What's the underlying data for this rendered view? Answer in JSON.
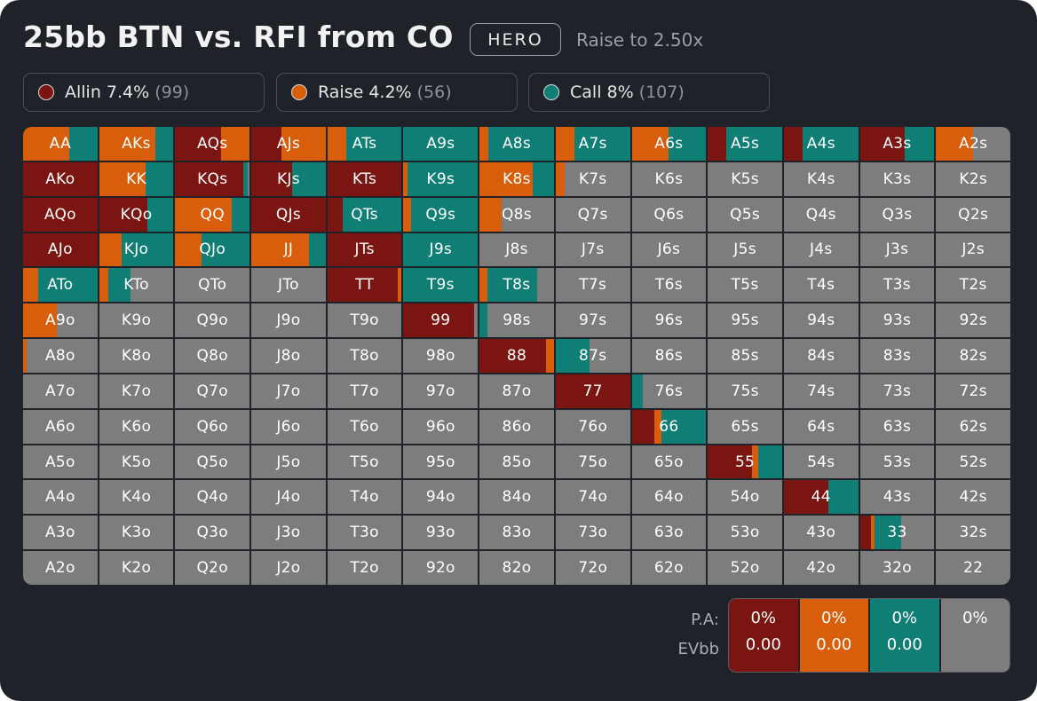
{
  "header": {
    "title": "25bb BTN vs. RFI from CO",
    "badge": "HERO",
    "subtitle": "Raise to 2.50x"
  },
  "legend": [
    {
      "label": "Allin 7.4%",
      "count": "(99)",
      "color": "#7b1512",
      "key": "allin"
    },
    {
      "label": "Raise 4.2%",
      "count": "(56)",
      "color": "#d95e0b",
      "key": "raise"
    },
    {
      "label": "Call 8%",
      "count": "(107)",
      "color": "#0f7e74",
      "key": "call"
    }
  ],
  "colors": {
    "allin": "#7b1512",
    "raise": "#d95e0b",
    "call": "#0f7e74",
    "fold": "#7d7d7d",
    "background": "#1f2228"
  },
  "grid": {
    "ranks": [
      "A",
      "K",
      "Q",
      "J",
      "T",
      "9",
      "8",
      "7",
      "6",
      "5",
      "4",
      "3",
      "2"
    ],
    "rows": [
      [
        "AA",
        "AKs",
        "AQs",
        "AJs",
        "ATs",
        "A9s",
        "A8s",
        "A7s",
        "A6s",
        "A5s",
        "A4s",
        "A3s",
        "A2s"
      ],
      [
        "AKo",
        "KK",
        "KQs",
        "KJs",
        "KTs",
        "K9s",
        "K8s",
        "K7s",
        "K6s",
        "K5s",
        "K4s",
        "K3s",
        "K2s"
      ],
      [
        "AQo",
        "KQo",
        "QQ",
        "QJs",
        "QTs",
        "Q9s",
        "Q8s",
        "Q7s",
        "Q6s",
        "Q5s",
        "Q4s",
        "Q3s",
        "Q2s"
      ],
      [
        "AJo",
        "KJo",
        "QJo",
        "JJ",
        "JTs",
        "J9s",
        "J8s",
        "J7s",
        "J6s",
        "J5s",
        "J4s",
        "J3s",
        "J2s"
      ],
      [
        "ATo",
        "KTo",
        "QTo",
        "JTo",
        "TT",
        "T9s",
        "T8s",
        "T7s",
        "T6s",
        "T5s",
        "T4s",
        "T3s",
        "T2s"
      ],
      [
        "A9o",
        "K9o",
        "Q9o",
        "J9o",
        "T9o",
        "99",
        "98s",
        "97s",
        "96s",
        "95s",
        "94s",
        "93s",
        "92s"
      ],
      [
        "A8o",
        "K8o",
        "Q8o",
        "J8o",
        "T8o",
        "98o",
        "88",
        "87s",
        "86s",
        "85s",
        "84s",
        "83s",
        "82s"
      ],
      [
        "A7o",
        "K7o",
        "Q7o",
        "J7o",
        "T7o",
        "97o",
        "87o",
        "77",
        "76s",
        "75s",
        "74s",
        "73s",
        "72s"
      ],
      [
        "A6o",
        "K6o",
        "Q6o",
        "J6o",
        "T6o",
        "96o",
        "86o",
        "76o",
        "66",
        "65s",
        "64s",
        "63s",
        "62s"
      ],
      [
        "A5o",
        "K5o",
        "Q5o",
        "J5o",
        "T5o",
        "95o",
        "85o",
        "75o",
        "65o",
        "55",
        "54s",
        "53s",
        "52s"
      ],
      [
        "A4o",
        "K4o",
        "Q4o",
        "J4o",
        "T4o",
        "94o",
        "84o",
        "74o",
        "64o",
        "54o",
        "44",
        "43s",
        "42s"
      ],
      [
        "A3o",
        "K3o",
        "Q3o",
        "J3o",
        "T3o",
        "93o",
        "83o",
        "73o",
        "63o",
        "53o",
        "43o",
        "33",
        "32s"
      ],
      [
        "A2o",
        "K2o",
        "Q2o",
        "J2o",
        "T2o",
        "92o",
        "82o",
        "72o",
        "62o",
        "52o",
        "42o",
        "32o",
        "22"
      ]
    ],
    "frequencies": {
      "AA": [
        0,
        0.62,
        0.38
      ],
      "AKs": [
        0,
        0.76,
        0.24
      ],
      "AQs": [
        0.62,
        0.38,
        0
      ],
      "AJs": [
        0.4,
        0.6,
        0
      ],
      "ATs": [
        0,
        0.25,
        0.75
      ],
      "A9s": [
        0,
        0,
        1
      ],
      "A8s": [
        0,
        0.12,
        0.88
      ],
      "A7s": [
        0,
        0.25,
        0.75
      ],
      "A6s": [
        0,
        0.5,
        0.5
      ],
      "A5s": [
        0.25,
        0,
        0.75
      ],
      "A4s": [
        0.25,
        0,
        0.75
      ],
      "A3s": [
        0.6,
        0,
        0.4
      ],
      "A2s": [
        0,
        0.5,
        0
      ],
      "AKo": [
        1,
        0,
        0
      ],
      "KK": [
        0,
        0.62,
        0.38
      ],
      "KQs": [
        0.92,
        0,
        0.06
      ],
      "KJs": [
        0.55,
        0,
        0.45
      ],
      "KTs": [
        1,
        0,
        0
      ],
      "K9s": [
        0,
        0.05,
        0.95
      ],
      "K8s": [
        0,
        0.72,
        0.28
      ],
      "K7s": [
        0,
        0.12,
        0
      ],
      "AQo": [
        1,
        0,
        0
      ],
      "KQo": [
        0.65,
        0,
        0.35
      ],
      "QQ": [
        0,
        0.76,
        0.24
      ],
      "QJs": [
        1,
        0,
        0
      ],
      "QTs": [
        0.2,
        0,
        0.8
      ],
      "Q9s": [
        0,
        0.1,
        0.9
      ],
      "Q8s": [
        0,
        0.3,
        0
      ],
      "AJo": [
        1,
        0,
        0
      ],
      "KJo": [
        0,
        0.3,
        0.7
      ],
      "QJo": [
        0,
        0.35,
        0.65
      ],
      "JJ": [
        0,
        0.78,
        0.22
      ],
      "JTs": [
        1,
        0,
        0
      ],
      "J9s": [
        0,
        0,
        1
      ],
      "ATo": [
        0,
        0.2,
        0.8
      ],
      "KTo": [
        0,
        0.12,
        0.3
      ],
      "TT": [
        0.95,
        0.05,
        0
      ],
      "T9s": [
        0,
        0,
        1
      ],
      "T8s": [
        0,
        0.1,
        0.68
      ],
      "A9o": [
        0,
        0.45,
        0
      ],
      "99": [
        0.95,
        0,
        0
      ],
      "98s": [
        0,
        0,
        0.1
      ],
      "A8o": [
        0,
        0.05,
        0
      ],
      "88": [
        0.9,
        0.1,
        0
      ],
      "87s": [
        0,
        0,
        0.45
      ],
      "77": [
        1,
        0,
        0
      ],
      "76s": [
        0,
        0,
        0.15
      ],
      "66": [
        0.3,
        0.1,
        0.6
      ],
      "55": [
        0.6,
        0.08,
        0.32
      ],
      "44": [
        0.6,
        0,
        0.4
      ],
      "33": [
        0.15,
        0.05,
        0.35
      ]
    }
  },
  "stats": {
    "pa_label": "P.A:",
    "ev_label": "EVbb",
    "columns": [
      {
        "pa": "0%",
        "ev": "0.00",
        "color": "#7b1512"
      },
      {
        "pa": "0%",
        "ev": "0.00",
        "color": "#d95e0b"
      },
      {
        "pa": "0%",
        "ev": "0.00",
        "color": "#0f7e74"
      },
      {
        "pa": "0%",
        "ev": "",
        "color": "#7d7d7d"
      }
    ]
  }
}
